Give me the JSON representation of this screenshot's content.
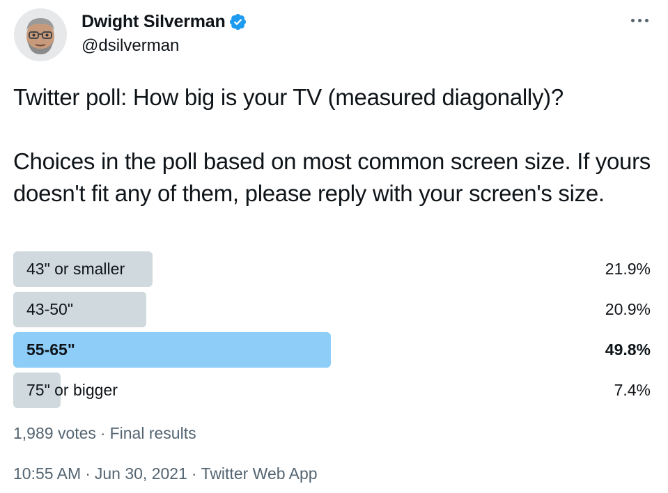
{
  "author": {
    "name": "Dwight Silverman",
    "handle": "@dsilverman",
    "verified": true,
    "avatar_icon": "memoji-avatar"
  },
  "more_icon": "more-options-icon",
  "tweet": {
    "text": "Twitter poll: How big is your TV (measured diagonally)?\n\nChoices in the poll based on most common screen size. If yours doesn't fit any of them, please reply with your screen's size."
  },
  "poll": {
    "options": [
      {
        "label": "43\" or smaller",
        "percent_text": "21.9%",
        "percent": 21.9,
        "winner": false
      },
      {
        "label": "43-50\"",
        "percent_text": "20.9%",
        "percent": 20.9,
        "winner": false
      },
      {
        "label": "55-65\"",
        "percent_text": "49.8%",
        "percent": 49.8,
        "winner": true
      },
      {
        "label": "75\" or bigger",
        "percent_text": "7.4%",
        "percent": 7.4,
        "winner": false
      }
    ],
    "votes": "1,989 votes",
    "status": "Final results",
    "bar_color": "#cfd9de",
    "winner_color": "#8ecdf8"
  },
  "meta": {
    "time": "10:55 AM",
    "date": "Jun 30, 2021",
    "source": "Twitter Web App"
  },
  "colors": {
    "verified": "#1d9bf0",
    "secondary_text": "#536471"
  }
}
